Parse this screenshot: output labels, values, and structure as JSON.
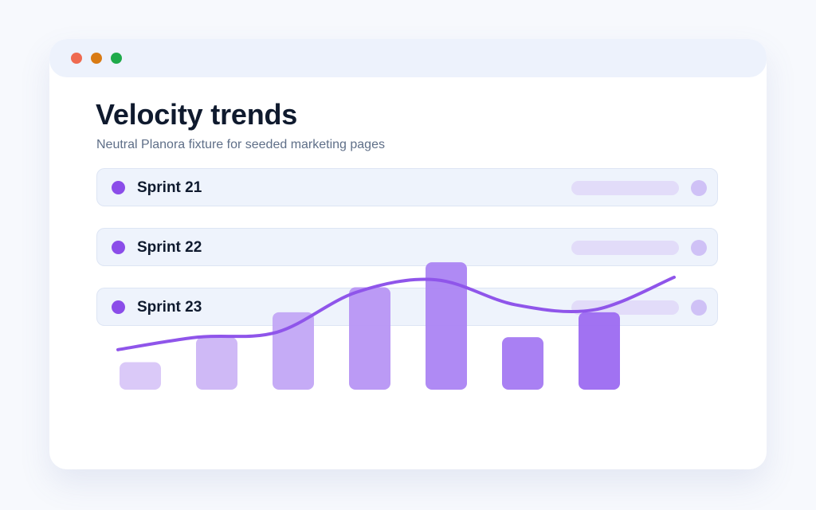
{
  "window": {
    "controls": [
      {
        "name": "close",
        "color": "#ef6a50"
      },
      {
        "name": "minimize",
        "color": "#d97b14"
      },
      {
        "name": "maximize",
        "color": "#1faa4a"
      }
    ]
  },
  "header": {
    "title": "Velocity trends",
    "subtitle": "Neutral Planora fixture for seeded marketing pages"
  },
  "sprints": [
    {
      "label": "Sprint 21",
      "dot_color": "#8b4de9"
    },
    {
      "label": "Sprint 22",
      "dot_color": "#8b4de9"
    },
    {
      "label": "Sprint 23",
      "dot_color": "#8b4de9"
    }
  ],
  "chart_data": {
    "type": "bar",
    "values": [
      1.1,
      2.1,
      3.1,
      4.1,
      5.1,
      2.1,
      3.1
    ],
    "trend": [
      1.6,
      2.1,
      2.3,
      3.9,
      4.4,
      3.4,
      3.2,
      4.5
    ],
    "ylim": [
      0,
      5.2
    ],
    "bar_colors": [
      "#d8c6f8",
      "#ccb5f6",
      "#c2a6f5",
      "#b795f4",
      "#ab84f3",
      "#a479f2",
      "#9c6af1"
    ],
    "line_color": "#8f55ea"
  }
}
